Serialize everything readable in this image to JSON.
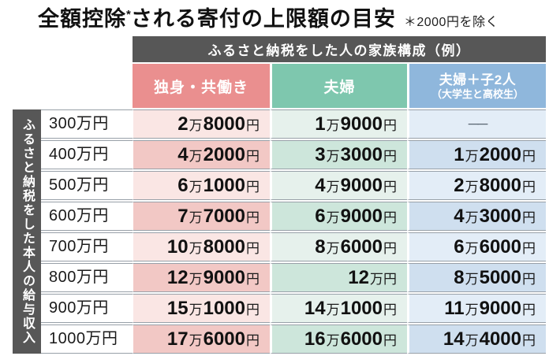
{
  "title": {
    "part1": "全額控除",
    "asterisk": "*",
    "part2": "される寄付の上限額の目安",
    "note": "＊2000円を除く"
  },
  "colors": {
    "header_gray": "#575757",
    "pink_header": "#ea8f8f",
    "teal_header": "#7ec7ae",
    "blue_header": "#8fb7dc",
    "pink_row_light": "#fae6e4",
    "pink_row_dark": "#f2c8c5",
    "teal_row_light": "#e6f1ec",
    "teal_row_dark": "#cde6db",
    "blue_row_light": "#e3edf7",
    "blue_row_dark": "#cfdfef",
    "separator_gray": "#98a0a8"
  },
  "chart_data": {
    "type": "table",
    "title": "全額控除*される寄付の上限額の目安",
    "footnote": "＊2000円を除く",
    "column_group_label": "ふるさと納税をした人の家族構成（例）",
    "row_group_label": "ふるさと納税をした本人の給与収入",
    "columns": [
      {
        "label": "独身・共働き",
        "sublabel": "",
        "color": "#ea8f8f"
      },
      {
        "label": "夫婦",
        "sublabel": "",
        "color": "#7ec7ae"
      },
      {
        "label": "夫婦＋子2人",
        "sublabel": "（大学生と高校生）",
        "color": "#8fb7dc"
      }
    ],
    "rows": [
      {
        "income": "300万円",
        "values": [
          "2万8000円",
          "1万9000円",
          "──"
        ]
      },
      {
        "income": "400万円",
        "values": [
          "4万2000円",
          "3万3000円",
          "1万2000円"
        ]
      },
      {
        "income": "500万円",
        "values": [
          "6万1000円",
          "4万9000円",
          "2万8000円"
        ]
      },
      {
        "income": "600万円",
        "values": [
          "7万7000円",
          "6万9000円",
          "4万3000円"
        ]
      },
      {
        "income": "700万円",
        "values": [
          "10万8000円",
          "8万6000円",
          "6万6000円"
        ]
      },
      {
        "income": "800万円",
        "values": [
          "12万9000円",
          "12万円",
          "8万5000円"
        ]
      },
      {
        "income": "900万円",
        "values": [
          "15万1000円",
          "14万1000円",
          "11万9000円"
        ]
      },
      {
        "income": "1000万円",
        "values": [
          "17万6000円",
          "16万6000円",
          "14万4000円"
        ]
      }
    ]
  }
}
